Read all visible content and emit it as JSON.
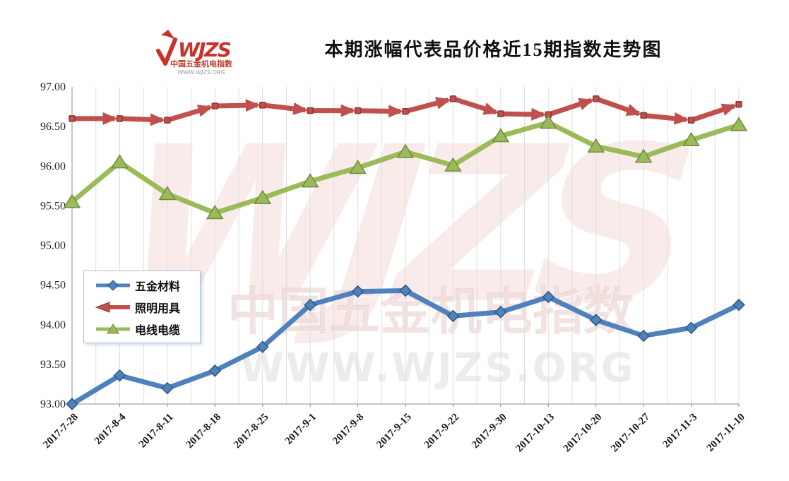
{
  "header": {
    "title": "本期涨幅代表品价格近15期指数走势图",
    "logo": {
      "brand": "WJZS",
      "tagline": "中国五金机电指数",
      "url": "WWW.WJZS.ORG"
    }
  },
  "watermark": {
    "brand": "WJZS",
    "tagline": "中国五金机电指数",
    "url": "WWW.WJZS.ORG"
  },
  "chart_data": {
    "type": "line",
    "title": "本期涨幅代表品价格近15期指数走势图",
    "categories": [
      "2017-7-28",
      "2017-8-4",
      "2017-8-11",
      "2017-8-18",
      "2017-8-25",
      "2017-9-1",
      "2017-9-8",
      "2017-9-15",
      "2017-9-22",
      "2017-9-30",
      "2017-10-13",
      "2017-10-20",
      "2017-10-27",
      "2017-11-3",
      "2017-11-10"
    ],
    "series": [
      {
        "name": "五金材料",
        "color": "#4F81BD",
        "edge": "#2C5985",
        "marker": "diamond",
        "values": [
          93.0,
          93.36,
          93.2,
          93.42,
          93.72,
          94.25,
          94.42,
          94.43,
          94.11,
          94.16,
          94.35,
          94.06,
          93.86,
          93.96,
          94.25
        ]
      },
      {
        "name": "照明用具",
        "color": "#C0504D",
        "edge": "#8C3836",
        "marker": "arrow",
        "values": [
          96.6,
          96.6,
          96.58,
          96.76,
          96.77,
          96.7,
          96.7,
          96.69,
          96.85,
          96.66,
          96.65,
          96.85,
          96.64,
          96.58,
          96.78
        ]
      },
      {
        "name": "电线电缆",
        "color": "#9BBB59",
        "edge": "#71893F",
        "marker": "triangle",
        "values": [
          95.55,
          96.05,
          95.65,
          95.41,
          95.6,
          95.81,
          95.98,
          96.18,
          96.01,
          96.38,
          96.55,
          96.25,
          96.12,
          96.33,
          96.52
        ]
      }
    ],
    "xlabel": "",
    "ylabel": "",
    "ylim": [
      93.0,
      97.0
    ],
    "y_ticks": [
      "97.00",
      "96.50",
      "96.00",
      "95.50",
      "95.00",
      "94.50",
      "94.00",
      "93.50",
      "93.00"
    ],
    "grid": "vertical-only",
    "legend_position": "middle-left"
  }
}
